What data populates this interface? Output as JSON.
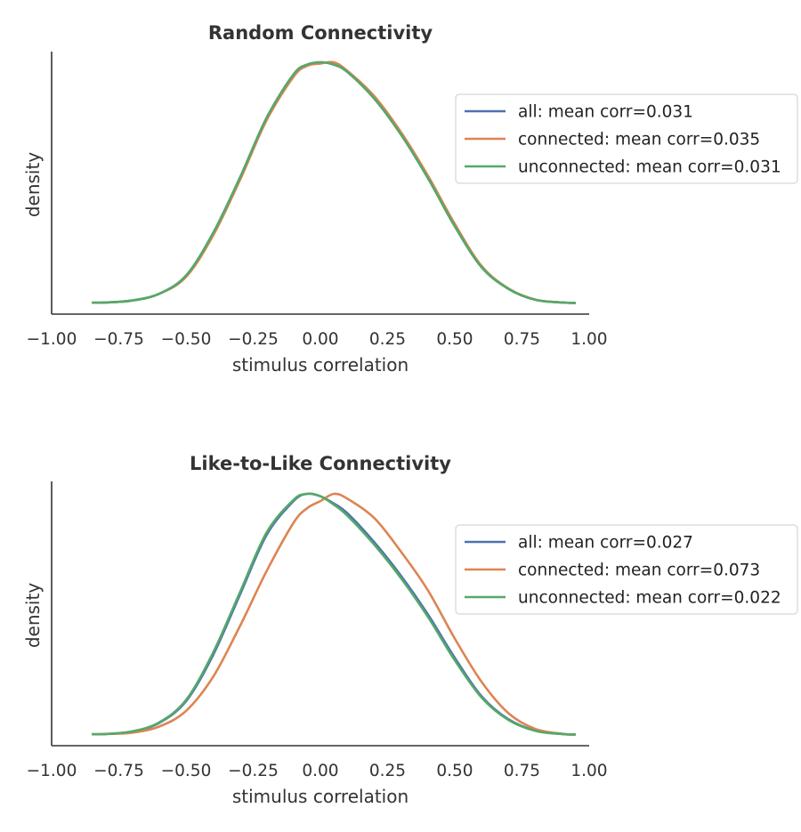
{
  "chart_data": [
    {
      "type": "line",
      "title": "Random Connectivity",
      "xlabel": "stimulus correlation",
      "ylabel": "density",
      "xlim": [
        -1.0,
        1.0
      ],
      "xticks": [
        "−1.00",
        "−0.75",
        "−0.50",
        "−0.25",
        "0.00",
        "0.25",
        "0.50",
        "0.75",
        "1.00"
      ],
      "yticks_visible": false,
      "grid": false,
      "legend_position": "right",
      "x": [
        -0.85,
        -0.8,
        -0.7,
        -0.6,
        -0.5,
        -0.4,
        -0.3,
        -0.2,
        -0.1,
        -0.05,
        0.0,
        0.05,
        0.1,
        0.2,
        0.3,
        0.4,
        0.5,
        0.6,
        0.7,
        0.8,
        0.9,
        0.95
      ],
      "series": [
        {
          "name": "all: mean corr=0.031",
          "color": "#4c72b0",
          "values": [
            0.003,
            0.004,
            0.012,
            0.04,
            0.115,
            0.29,
            0.52,
            0.77,
            0.95,
            0.99,
            1.0,
            0.99,
            0.96,
            0.85,
            0.7,
            0.52,
            0.32,
            0.15,
            0.06,
            0.015,
            0.004,
            0.002
          ]
        },
        {
          "name": "connected: mean corr=0.035",
          "color": "#dd8452",
          "values": [
            0.003,
            0.004,
            0.012,
            0.04,
            0.11,
            0.28,
            0.51,
            0.76,
            0.94,
            0.985,
            0.995,
            1.0,
            0.965,
            0.86,
            0.71,
            0.53,
            0.33,
            0.155,
            0.062,
            0.016,
            0.004,
            0.002
          ]
        },
        {
          "name": "unconnected: mean corr=0.031",
          "color": "#55a868",
          "values": [
            0.003,
            0.004,
            0.012,
            0.04,
            0.115,
            0.29,
            0.52,
            0.77,
            0.95,
            0.99,
            1.0,
            0.99,
            0.96,
            0.85,
            0.7,
            0.52,
            0.32,
            0.15,
            0.06,
            0.015,
            0.004,
            0.002
          ]
        }
      ]
    },
    {
      "type": "line",
      "title": "Like-to-Like Connectivity",
      "xlabel": "stimulus correlation",
      "ylabel": "density",
      "xlim": [
        -1.0,
        1.0
      ],
      "xticks": [
        "−1.00",
        "−0.75",
        "−0.50",
        "−0.25",
        "0.00",
        "0.25",
        "0.50",
        "0.75",
        "1.00"
      ],
      "yticks_visible": false,
      "grid": false,
      "legend_position": "right",
      "x": [
        -0.85,
        -0.8,
        -0.7,
        -0.6,
        -0.5,
        -0.4,
        -0.3,
        -0.2,
        -0.1,
        -0.05,
        0.0,
        0.05,
        0.1,
        0.2,
        0.3,
        0.4,
        0.5,
        0.6,
        0.7,
        0.8,
        0.9,
        0.95
      ],
      "series": [
        {
          "name": "all: mean corr=0.027",
          "color": "#4c72b0",
          "values": [
            0.003,
            0.004,
            0.014,
            0.05,
            0.14,
            0.33,
            0.58,
            0.83,
            0.97,
            1.0,
            0.99,
            0.96,
            0.92,
            0.8,
            0.66,
            0.5,
            0.32,
            0.16,
            0.065,
            0.018,
            0.004,
            0.002
          ]
        },
        {
          "name": "connected: mean corr=0.073",
          "color": "#dd8452",
          "values": [
            0.003,
            0.004,
            0.01,
            0.035,
            0.1,
            0.24,
            0.45,
            0.68,
            0.88,
            0.94,
            0.97,
            1.0,
            0.98,
            0.9,
            0.76,
            0.6,
            0.4,
            0.22,
            0.09,
            0.025,
            0.005,
            0.002
          ]
        },
        {
          "name": "unconnected: mean corr=0.022",
          "color": "#55a868",
          "values": [
            0.003,
            0.004,
            0.015,
            0.052,
            0.145,
            0.34,
            0.59,
            0.84,
            0.975,
            1.0,
            0.99,
            0.955,
            0.91,
            0.79,
            0.65,
            0.49,
            0.31,
            0.155,
            0.062,
            0.017,
            0.004,
            0.002
          ]
        }
      ]
    }
  ]
}
